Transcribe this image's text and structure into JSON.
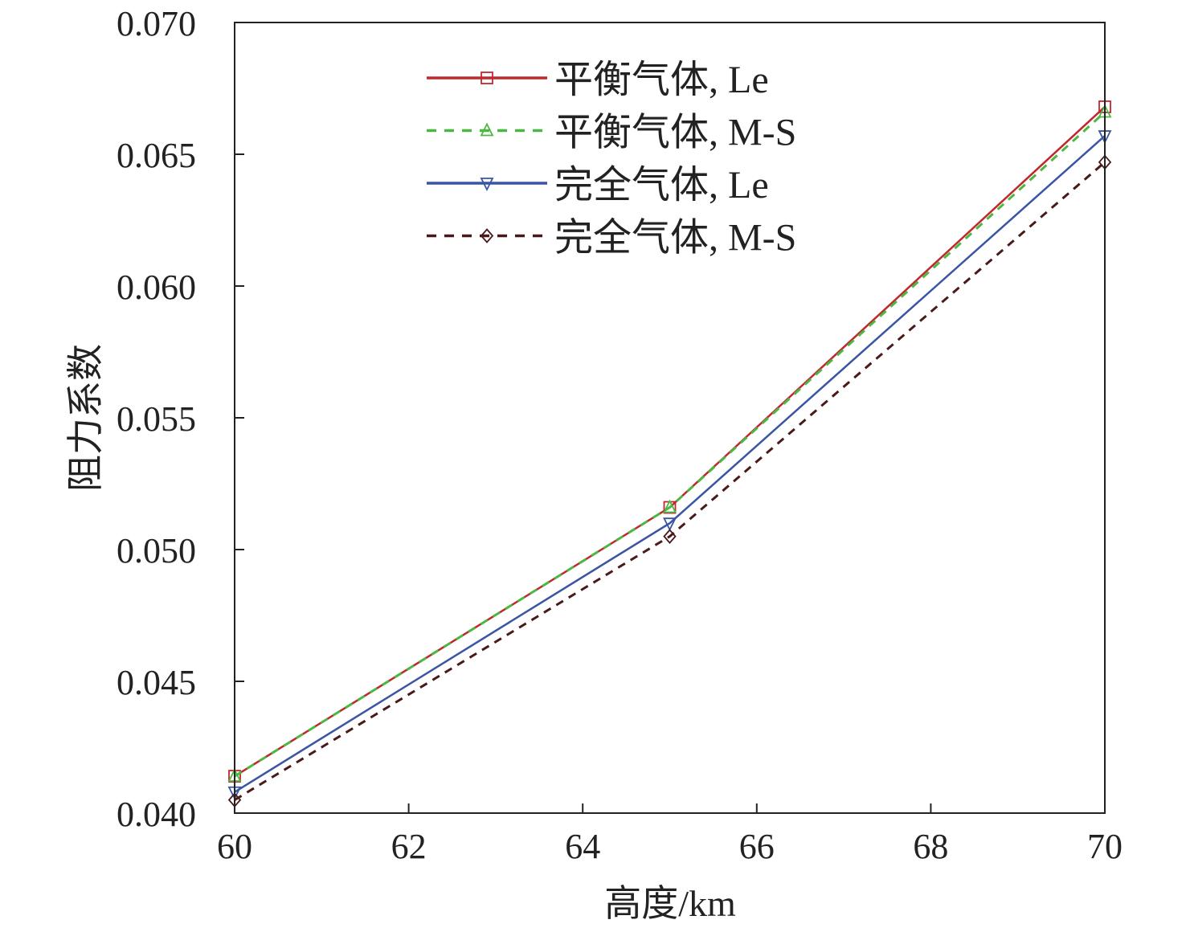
{
  "chart_data": {
    "type": "line",
    "title": "",
    "xlabel": "高度/km",
    "ylabel": "阻力系数",
    "xlim": [
      60,
      70
    ],
    "ylim": [
      0.04,
      0.07
    ],
    "xticks": [
      60,
      62,
      64,
      66,
      68,
      70
    ],
    "xtick_labels": [
      "60",
      "62",
      "64",
      "66",
      "68",
      "70"
    ],
    "yticks": [
      0.04,
      0.045,
      0.05,
      0.055,
      0.06,
      0.065,
      0.07
    ],
    "ytick_labels": [
      "0.040",
      "0.045",
      "0.050",
      "0.055",
      "0.060",
      "0.065",
      "0.070"
    ],
    "grid": false,
    "legend_position": "top-center",
    "x": [
      60,
      65,
      70
    ],
    "series": [
      {
        "name": "平衡气体, Le",
        "values": [
          0.0414,
          0.0516,
          0.0668
        ],
        "color": "#c0282e",
        "dash": "solid",
        "marker": "square"
      },
      {
        "name": "平衡气体, M-S",
        "values": [
          0.0414,
          0.0516,
          0.0666
        ],
        "color": "#4cb842",
        "dash": "dashed",
        "marker": "triangle-up"
      },
      {
        "name": "完全气体, Le",
        "values": [
          0.0408,
          0.051,
          0.0657
        ],
        "color": "#3a55a4",
        "dash": "solid",
        "marker": "triangle-down"
      },
      {
        "name": "完全气体, M-S",
        "values": [
          0.0405,
          0.0505,
          0.0647
        ],
        "color": "#4a1a1a",
        "dash": "dashed",
        "marker": "diamond"
      }
    ]
  }
}
